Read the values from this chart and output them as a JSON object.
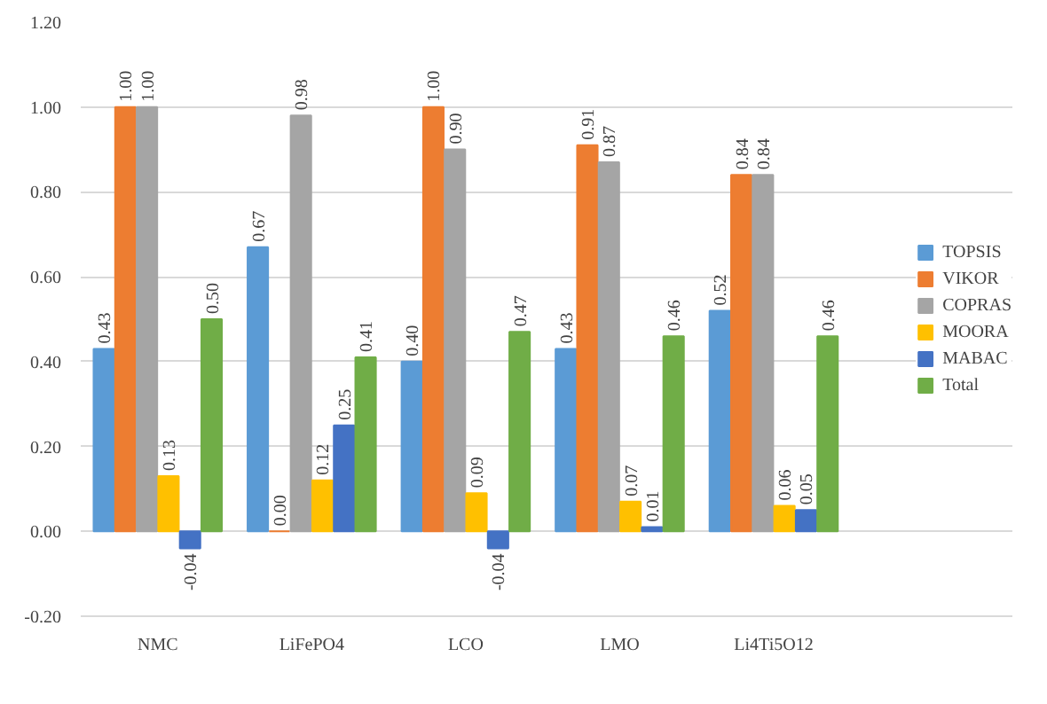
{
  "chart_data": {
    "type": "bar",
    "categories": [
      "NMC",
      "LiFePO4",
      "LCO",
      "LMO",
      "Li4Ti5O12"
    ],
    "series": [
      {
        "name": "TOPSIS",
        "color": "#5b9bd5",
        "values": [
          0.43,
          0.67,
          0.4,
          0.43,
          0.52
        ],
        "value_labels": [
          "0.43",
          "0.67",
          "0.40",
          "0.43",
          "0.52"
        ]
      },
      {
        "name": "VIKOR",
        "color": "#ed7d31",
        "values": [
          1.0,
          0.0,
          1.0,
          0.91,
          0.84
        ],
        "value_labels": [
          "1.00",
          "0.00",
          "1.00",
          "0.91",
          "0.84"
        ]
      },
      {
        "name": "COPRAS",
        "color": "#a5a5a5",
        "values": [
          1.0,
          0.98,
          0.9,
          0.87,
          0.84
        ],
        "value_labels": [
          "1.00",
          "0.98",
          "0.90",
          "0.87",
          "0.84"
        ]
      },
      {
        "name": "MOORA",
        "color": "#ffc000",
        "values": [
          0.13,
          0.12,
          0.09,
          0.07,
          0.06
        ],
        "value_labels": [
          "0.13",
          "0.12",
          "0.09",
          "0.07",
          "0.06"
        ]
      },
      {
        "name": "MABAC",
        "color": "#4472c4",
        "values": [
          -0.04,
          0.25,
          -0.04,
          0.01,
          0.05
        ],
        "value_labels": [
          "-0.04",
          "0.25",
          "-0.04",
          "0.01",
          "0.05"
        ]
      },
      {
        "name": "Total",
        "color": "#70ad47",
        "values": [
          0.5,
          0.41,
          0.47,
          0.46,
          0.46
        ],
        "value_labels": [
          "0.50",
          "0.41",
          "0.47",
          "0.46",
          "0.46"
        ]
      }
    ],
    "ylim": [
      -0.2,
      1.2
    ],
    "yticks": [
      {
        "value": -0.2,
        "label": "-0.20"
      },
      {
        "value": 0,
        "label": "0.00"
      },
      {
        "value": 0.2,
        "label": "0.20"
      },
      {
        "value": 0.4,
        "label": "0.40"
      },
      {
        "value": 0.6,
        "label": "0.60"
      },
      {
        "value": 0.8,
        "label": "0.80"
      },
      {
        "value": 1.0,
        "label": "1.00"
      },
      {
        "value": 1.2,
        "label": "1.20"
      }
    ],
    "grid": "y",
    "legend": "right"
  }
}
